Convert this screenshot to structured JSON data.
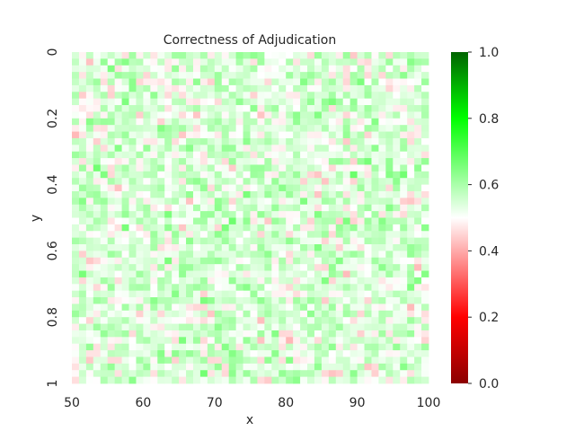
{
  "chart_data": {
    "type": "heatmap",
    "title": "Correctness of Adjudication",
    "xlabel": "x",
    "ylabel": "y",
    "x_range": [
      50,
      100
    ],
    "y_range": [
      0,
      1
    ],
    "x_ticks": [
      "50",
      "60",
      "70",
      "80",
      "90",
      "100"
    ],
    "y_ticks": [
      "0",
      "0.2",
      "0.4",
      "0.6",
      "0.8",
      "1"
    ],
    "colorbar": {
      "vmin": 0.0,
      "vmax": 1.0,
      "ticks": [
        "0.0",
        "0.2",
        "0.4",
        "0.6",
        "0.8",
        "1.0"
      ],
      "colormap": [
        {
          "value": 0.0,
          "color": "#8b0000"
        },
        {
          "value": 0.2,
          "color": "#ff0000"
        },
        {
          "value": 0.5,
          "color": "#ffffff"
        },
        {
          "value": 0.8,
          "color": "#00ff00"
        },
        {
          "value": 1.0,
          "color": "#006400"
        }
      ]
    },
    "grid": {
      "columns": 50,
      "rows": 50
    },
    "value_summary": {
      "min": 0.4,
      "max": 0.68,
      "mean": 0.53
    },
    "seed": 1337
  }
}
